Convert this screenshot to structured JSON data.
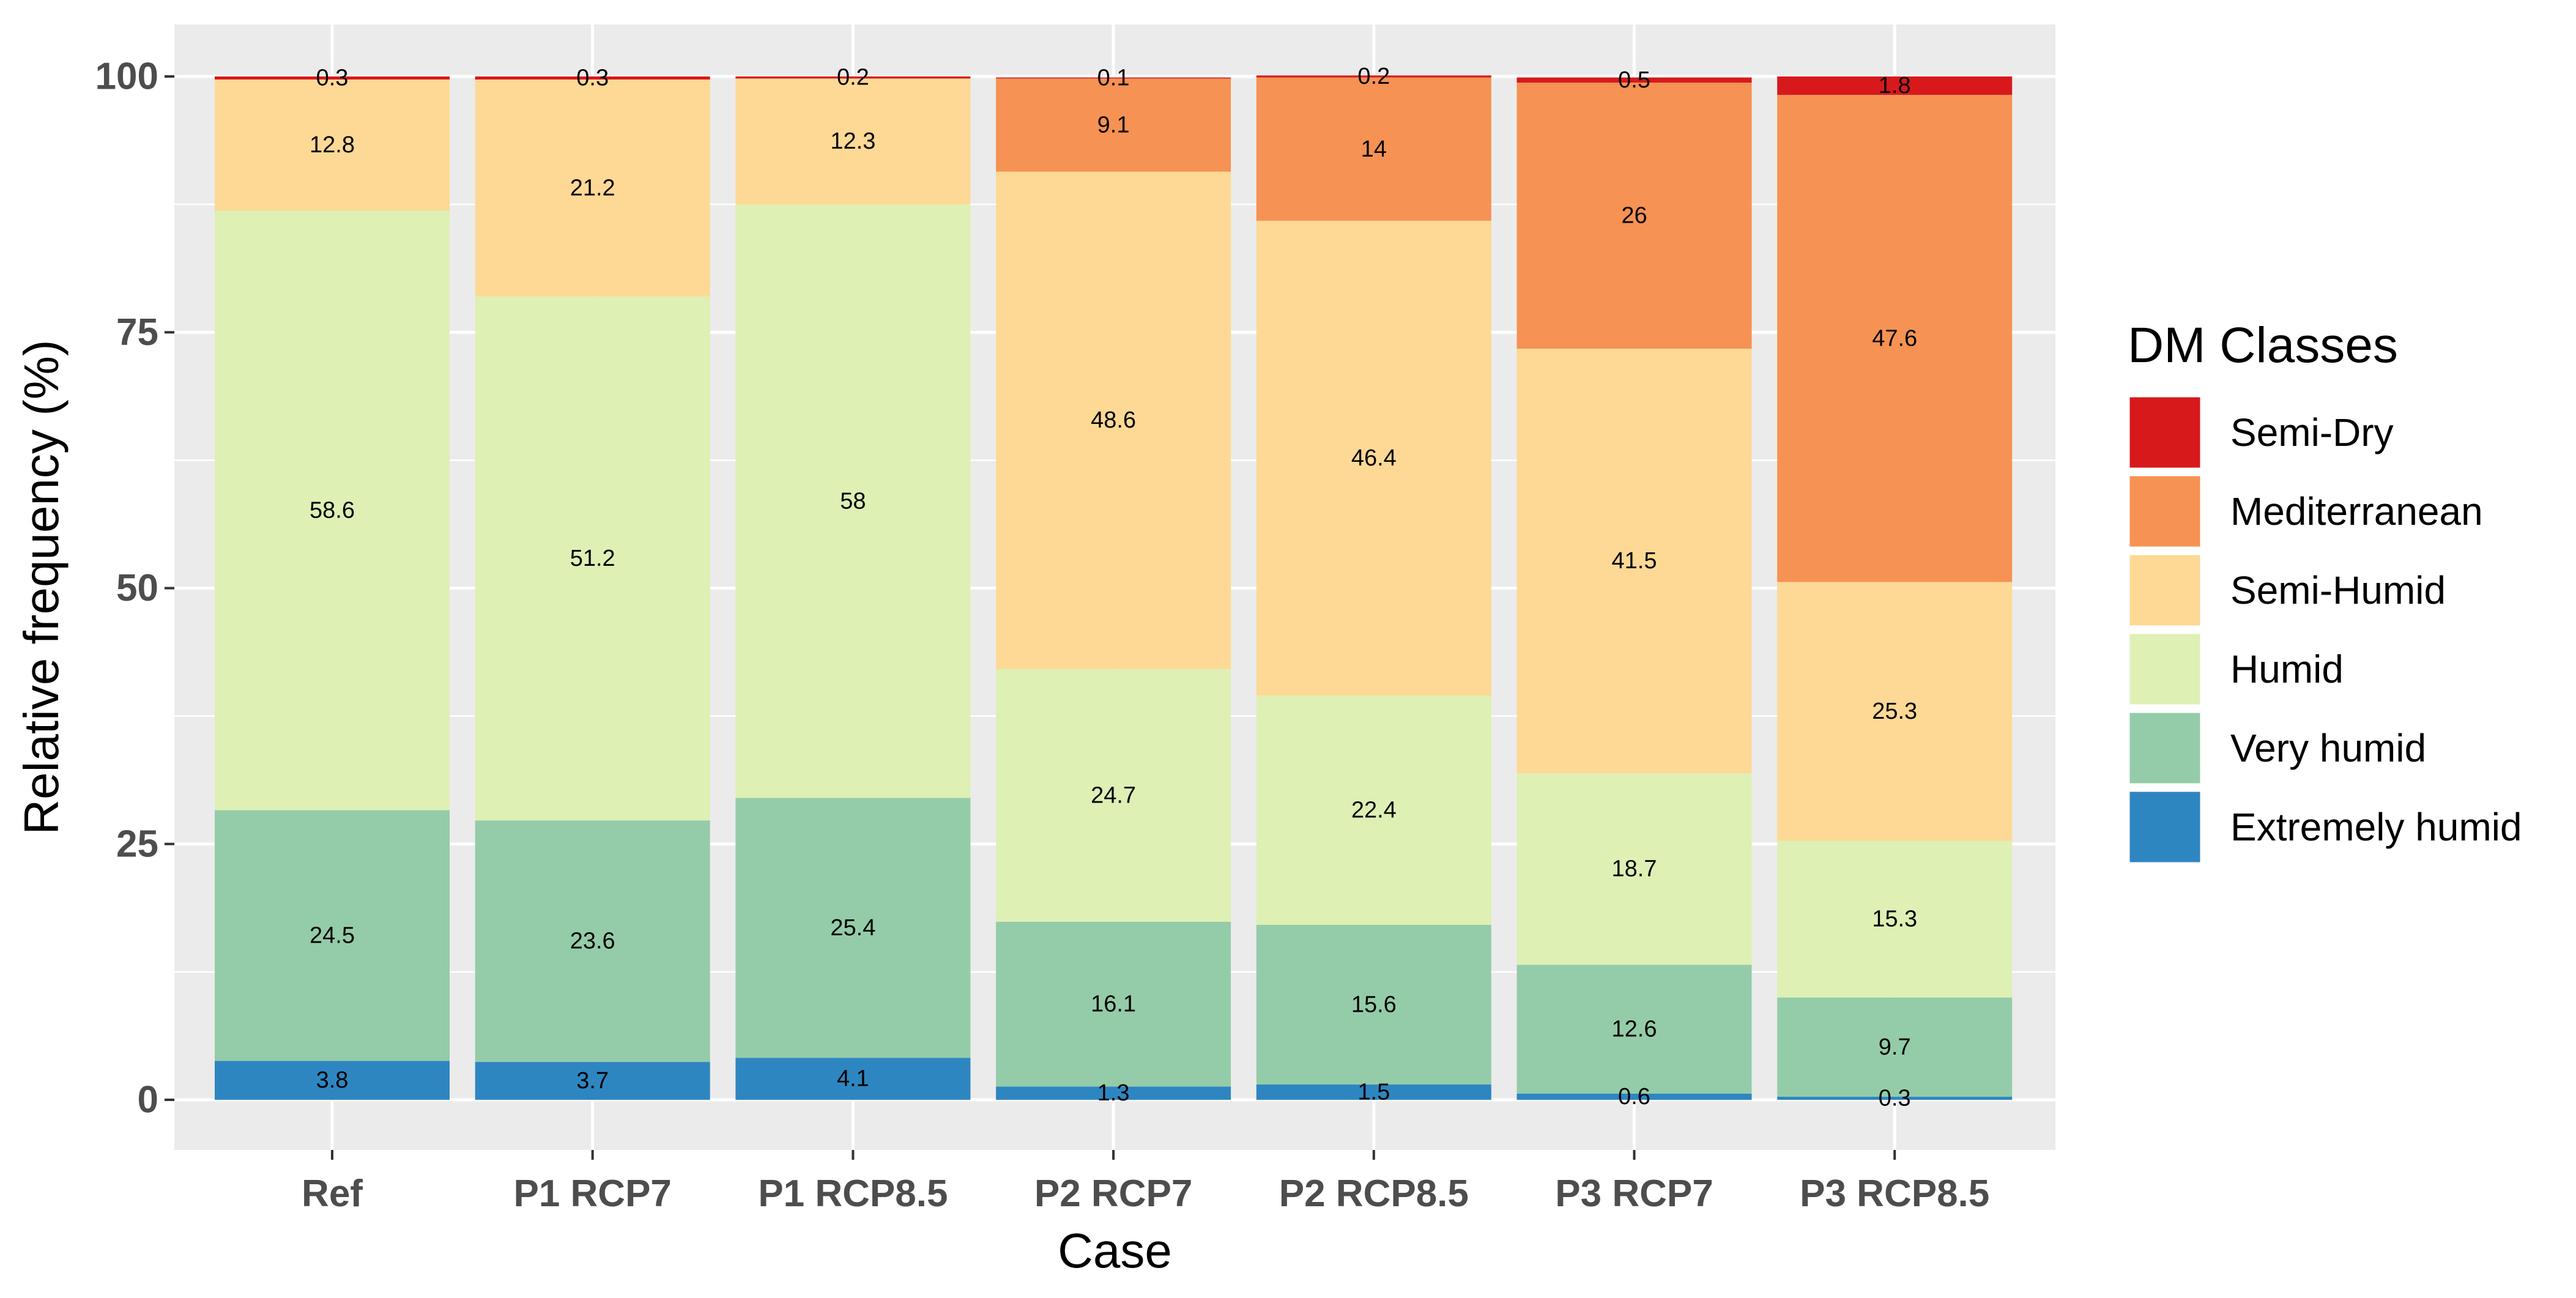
{
  "chart_data": {
    "type": "bar",
    "stacked": true,
    "title": "",
    "xlabel": "Case",
    "ylabel": "Relative frequency (%)",
    "ylim": [
      0,
      100
    ],
    "yticks": [
      0,
      25,
      50,
      75,
      100
    ],
    "categories": [
      "Ref",
      "P1 RCP7",
      "P1 RCP8.5",
      "P2 RCP7",
      "P2 RCP8.5",
      "P3 RCP7",
      "P3 RCP8.5"
    ],
    "series": [
      {
        "name": "Extremely humid",
        "color": "#2e86c1",
        "values": [
          3.8,
          3.7,
          4.1,
          1.3,
          1.5,
          0.6,
          0.3
        ]
      },
      {
        "name": "Very humid",
        "color": "#94cca9",
        "values": [
          24.5,
          23.6,
          25.4,
          16.1,
          15.6,
          12.6,
          9.7
        ]
      },
      {
        "name": "Humid",
        "color": "#def0b4",
        "values": [
          58.6,
          51.2,
          58,
          24.7,
          22.4,
          18.7,
          15.3
        ]
      },
      {
        "name": "Semi-Humid",
        "color": "#fdd995",
        "values": [
          12.8,
          21.2,
          12.3,
          48.6,
          46.4,
          41.5,
          25.3
        ]
      },
      {
        "name": "Mediterranean",
        "color": "#f69253",
        "values": [
          0,
          0,
          0,
          9.1,
          14,
          26,
          47.6
        ]
      },
      {
        "name": "Semi-Dry",
        "color": "#d7191c",
        "values": [
          0.3,
          0.3,
          0.2,
          0.1,
          0.2,
          0.5,
          1.8
        ]
      }
    ],
    "legend": {
      "title": "DM Classes",
      "position": "right",
      "order": [
        "Semi-Dry",
        "Mediterranean",
        "Semi-Humid",
        "Humid",
        "Very humid",
        "Extremely humid"
      ]
    },
    "panel_background": "#ebebeb",
    "grid": true
  }
}
